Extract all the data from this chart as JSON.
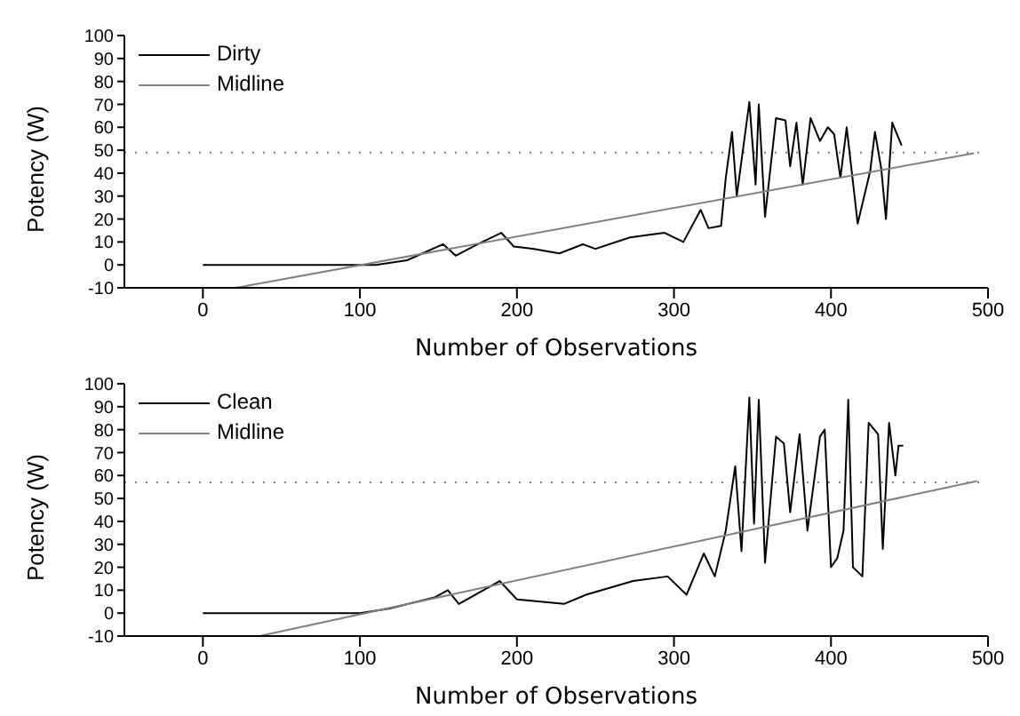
{
  "chart_data": [
    {
      "type": "line",
      "xlabel": "Number of Observations",
      "ylabel": "Potency (W)",
      "xlim": [
        -50,
        500
      ],
      "xticks": [
        0,
        100,
        200,
        300,
        400,
        500
      ],
      "ylim": [
        -10,
        100
      ],
      "yticks": [
        -10,
        0,
        10,
        20,
        30,
        40,
        50,
        60,
        70,
        80,
        90,
        100
      ],
      "legend": "top left",
      "marker": "none",
      "ref_lines": [
        {
          "axis": "y",
          "value": 49,
          "color": "#808080",
          "line_style": "dotted"
        }
      ],
      "series": [
        {
          "name": "Dirty",
          "color": "#000000",
          "x": [
            0,
            110,
            130,
            153,
            161,
            175,
            190,
            198,
            210,
            227,
            242,
            250,
            272,
            294,
            306,
            317,
            322,
            330,
            333,
            337,
            340,
            348,
            352,
            354,
            358,
            365,
            371,
            374,
            378,
            382,
            387,
            393,
            398,
            402,
            406,
            410,
            417,
            425,
            428,
            432,
            435,
            439,
            445
          ],
          "values": [
            0,
            0,
            2,
            9,
            4,
            9,
            14,
            8,
            7,
            5,
            9,
            7,
            12,
            14,
            10,
            24,
            16,
            17,
            38,
            58,
            30,
            71,
            35,
            70,
            21,
            64,
            63,
            43,
            62,
            35,
            64,
            54,
            60,
            57,
            38,
            60,
            18,
            41,
            58,
            42,
            20,
            62,
            52
          ]
        },
        {
          "name": "Midline",
          "color": "#808080",
          "x": [
            21,
            491
          ],
          "values": [
            -10,
            48.7
          ]
        }
      ]
    },
    {
      "type": "line",
      "xlabel": "Number of Observations",
      "ylabel": "Potency (W)",
      "xlim": [
        -50,
        500
      ],
      "xticks": [
        0,
        100,
        200,
        300,
        400,
        500
      ],
      "ylim": [
        -10,
        100
      ],
      "yticks": [
        -10,
        0,
        10,
        20,
        30,
        40,
        50,
        60,
        70,
        80,
        90,
        100
      ],
      "legend": "top left",
      "marker": "none",
      "ref_lines": [
        {
          "axis": "y",
          "value": 57,
          "color": "#808080",
          "line_style": "dotted"
        }
      ],
      "series": [
        {
          "name": "Clean",
          "color": "#000000",
          "x": [
            0,
            100,
            119,
            148,
            156,
            163,
            189,
            200,
            230,
            244,
            274,
            296,
            308,
            319,
            326,
            333,
            339,
            343,
            348,
            351,
            354,
            358,
            365,
            370,
            374,
            380,
            385,
            393,
            396,
            400,
            404,
            408,
            411,
            414,
            420,
            424,
            430,
            433,
            437,
            441,
            443,
            446
          ],
          "values": [
            0,
            0,
            2,
            7,
            10,
            4,
            14,
            6,
            4,
            8,
            14,
            16,
            8,
            26,
            16,
            36,
            64,
            27,
            94,
            39,
            93,
            22,
            77,
            74,
            44,
            78,
            36,
            77,
            80,
            20,
            24,
            36,
            93,
            20,
            16,
            83,
            78,
            28,
            83,
            60,
            73,
            73
          ]
        },
        {
          "name": "Midline",
          "color": "#808080",
          "x": [
            36,
            493
          ],
          "values": [
            -10,
            57.6
          ]
        }
      ]
    }
  ]
}
